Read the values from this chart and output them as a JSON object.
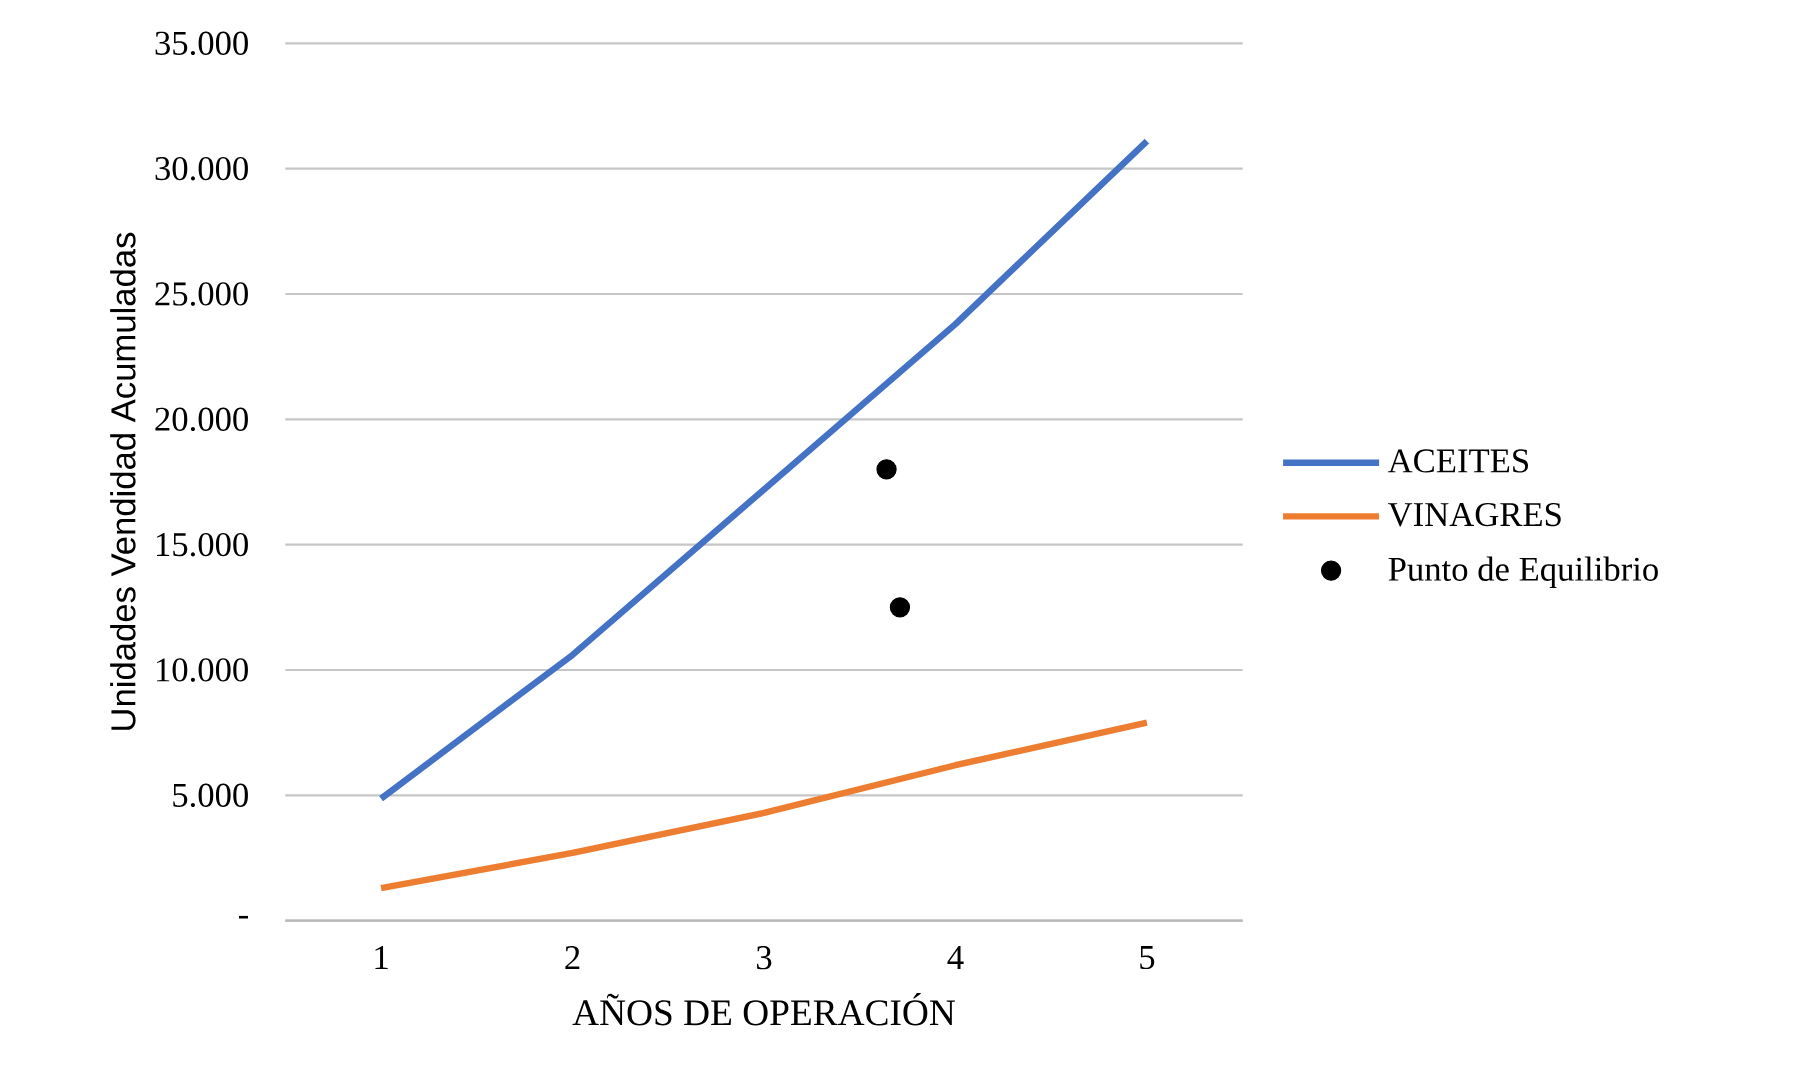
{
  "chart_data": {
    "type": "line",
    "xlabel": "AÑOS DE OPERACIÓN",
    "ylabel": "Unidades Vendidad Acumuladas",
    "x": [
      1,
      2,
      3,
      4,
      5
    ],
    "xlim": [
      0.5,
      5.5
    ],
    "xticks": [
      1,
      2,
      3,
      4,
      5
    ],
    "ylim": [
      0,
      35000
    ],
    "yticks": [
      {
        "value": 0,
        "label": "-"
      },
      {
        "value": 5000,
        "label": "5.000"
      },
      {
        "value": 10000,
        "label": "10.000"
      },
      {
        "value": 15000,
        "label": "15.000"
      },
      {
        "value": 20000,
        "label": "20.000"
      },
      {
        "value": 25000,
        "label": "25.000"
      },
      {
        "value": 30000,
        "label": "30.000"
      },
      {
        "value": 35000,
        "label": "35.000"
      }
    ],
    "grid": "y",
    "legend": "right",
    "series": [
      {
        "name": "ACEITES",
        "color": "#4472c4",
        "values": [
          4870,
          10600,
          17200,
          23800,
          31100
        ]
      },
      {
        "name": "VINAGRES",
        "color": "#ed7d31",
        "values": [
          1300,
          2700,
          4300,
          6200,
          7900
        ]
      },
      {
        "name": "Punto de Equilibrio",
        "type": "scatter",
        "marker": "circle",
        "color": "#000000",
        "x": [
          3.64,
          3.71
        ],
        "values": [
          18000,
          12500
        ]
      }
    ]
  }
}
